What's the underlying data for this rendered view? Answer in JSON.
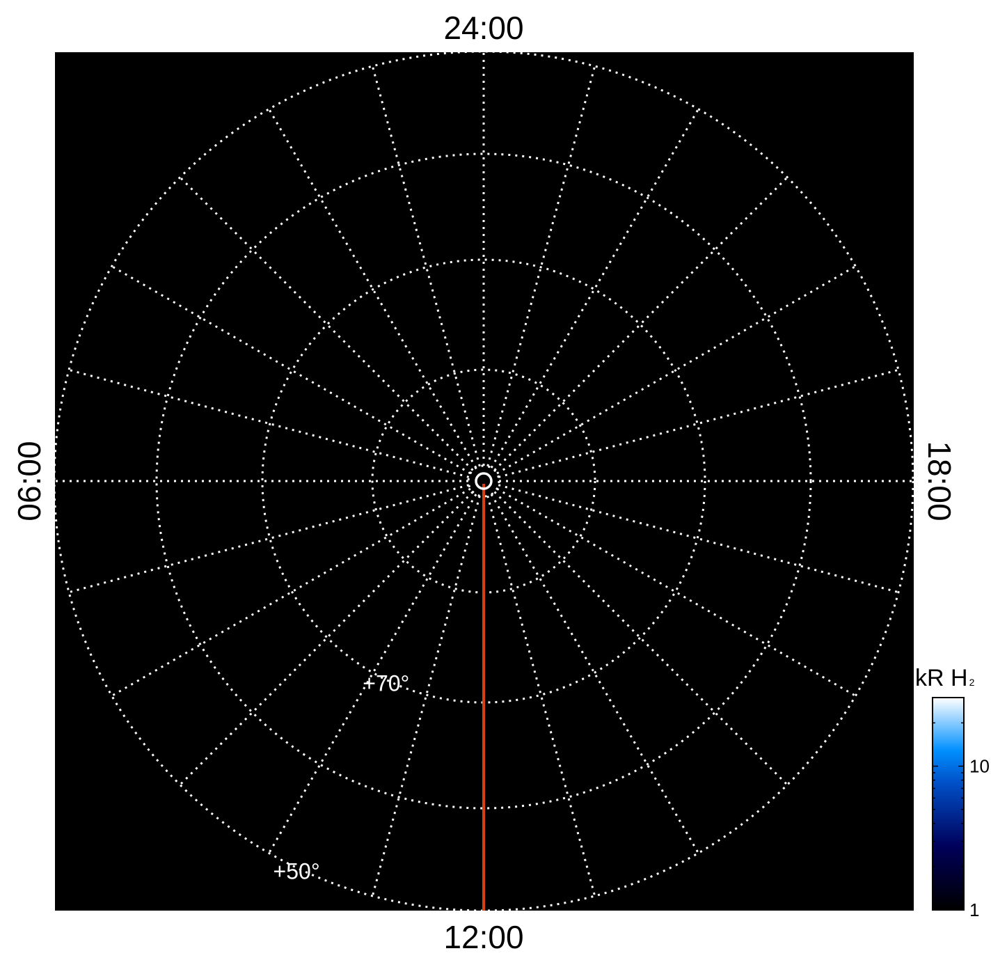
{
  "chart_data": {
    "type": "polar-projection",
    "title": "",
    "background_color": "#000000",
    "grid_color": "#ffffff",
    "grid_style": "dotted",
    "local_time_labels": [
      {
        "hour": 24,
        "text": "24:00",
        "position": "top"
      },
      {
        "hour": 6,
        "text": "06:00",
        "position": "left"
      },
      {
        "hour": 12,
        "text": "12:00",
        "position": "bottom"
      },
      {
        "hour": 18,
        "text": "18:00",
        "position": "right"
      }
    ],
    "meridian_step_hours": 1,
    "latitude_circles": [
      50,
      60,
      70,
      80
    ],
    "latitude_labels": [
      {
        "lat": 70,
        "text": "+70°"
      },
      {
        "lat": 50,
        "text": "+50°"
      }
    ],
    "highlight_meridian": {
      "hour": 12,
      "color": "#d84010"
    },
    "colorbar": {
      "label": "kR H",
      "label_subscript": "2",
      "scale": "log",
      "range": [
        1,
        30
      ],
      "ticks": [
        {
          "value": 1,
          "text": "1"
        },
        {
          "value": 10,
          "text": "10"
        }
      ],
      "colors": [
        "#000000",
        "#00005a",
        "#0050c8",
        "#0090ff",
        "#ffffff"
      ]
    }
  }
}
